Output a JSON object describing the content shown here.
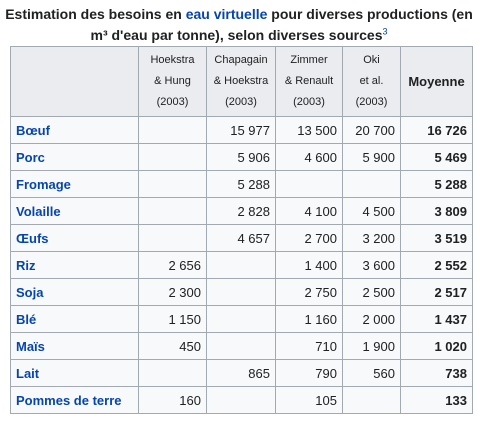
{
  "caption": {
    "prefix": "Estimation des besoins en ",
    "link": "eau virtuelle",
    "suffix": " pour diverses productions (en m³ d'eau par tonne), selon diverses sources",
    "ref": "3"
  },
  "table": {
    "headers": [
      [
        "Hoekstra",
        "& Hung",
        "(2003)"
      ],
      [
        "Chapagain",
        "& Hoekstra",
        "(2003)"
      ],
      [
        "Zimmer",
        "& Renault",
        "(2003)"
      ],
      [
        "Oki",
        "et al.",
        "(2003)"
      ]
    ],
    "average_header": "Moyenne",
    "rows": [
      {
        "product": "Bœuf",
        "values": [
          "",
          "15 977",
          "13 500",
          "20 700"
        ],
        "avg": "16 726"
      },
      {
        "product": "Porc",
        "values": [
          "",
          "5 906",
          "4 600",
          "5 900"
        ],
        "avg": "5 469"
      },
      {
        "product": "Fromage",
        "values": [
          "",
          "5 288",
          "",
          ""
        ],
        "avg": "5 288"
      },
      {
        "product": "Volaille",
        "values": [
          "",
          "2 828",
          "4 100",
          "4 500"
        ],
        "avg": "3 809"
      },
      {
        "product": "Œufs",
        "values": [
          "",
          "4 657",
          "2 700",
          "3 200"
        ],
        "avg": "3 519"
      },
      {
        "product": "Riz",
        "values": [
          "2 656",
          "",
          "1 400",
          "3 600"
        ],
        "avg": "2 552"
      },
      {
        "product": "Soja",
        "values": [
          "2 300",
          "",
          "2 750",
          "2 500"
        ],
        "avg": "2 517"
      },
      {
        "product": "Blé",
        "values": [
          "1 150",
          "",
          "1 160",
          "2 000"
        ],
        "avg": "1 437"
      },
      {
        "product": "Maïs",
        "values": [
          "450",
          "",
          "710",
          "1 900"
        ],
        "avg": "1 020"
      },
      {
        "product": "Lait",
        "values": [
          "",
          "865",
          "790",
          "560"
        ],
        "avg": "738"
      },
      {
        "product": "Pommes de terre",
        "values": [
          "160",
          "",
          "105",
          ""
        ],
        "avg": "133"
      }
    ]
  },
  "colors": {
    "link": "#0645ad",
    "header_bg": "#eaecf0",
    "cell_bg": "#f8f9fa",
    "border": "#a2a9b1"
  }
}
